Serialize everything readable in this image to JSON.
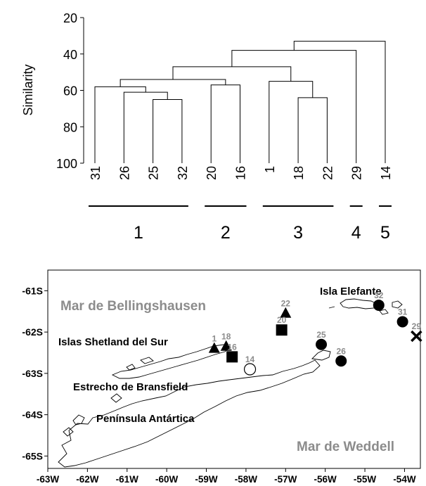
{
  "dendrogram": {
    "type": "dendrogram",
    "ylabel": "Similarity",
    "yticks": [
      20,
      40,
      60,
      80,
      100
    ],
    "ylim": [
      20,
      100
    ],
    "leaves": [
      "31",
      "26",
      "25",
      "32",
      "20",
      "16",
      "1",
      "18",
      "22",
      "29",
      "14"
    ],
    "merges": [
      {
        "a": "25",
        "b": "32",
        "similarity": 65
      },
      {
        "a": "26",
        "b": "25+32",
        "similarity": 61
      },
      {
        "a": "31",
        "b": "26+25+32",
        "similarity": 58
      },
      {
        "a": "20",
        "b": "16",
        "similarity": 57
      },
      {
        "a": "18",
        "b": "22",
        "similarity": 64
      },
      {
        "a": "1",
        "b": "18+22",
        "similarity": 55
      },
      {
        "a": "g1",
        "b": "g2",
        "similarity": 54
      },
      {
        "a": "g12",
        "b": "g3",
        "similarity": 47
      },
      {
        "a": "g123",
        "b": "29",
        "similarity": 38
      },
      {
        "a": "g1234",
        "b": "14",
        "similarity": 33
      }
    ],
    "groups": [
      {
        "label": "1",
        "leaves": [
          "31",
          "26",
          "25",
          "32"
        ]
      },
      {
        "label": "2",
        "leaves": [
          "20",
          "16"
        ]
      },
      {
        "label": "3",
        "leaves": [
          "1",
          "18",
          "22"
        ]
      },
      {
        "label": "4",
        "leaves": [
          "29"
        ]
      },
      {
        "label": "5",
        "leaves": [
          "14"
        ]
      }
    ]
  },
  "map": {
    "type": "scatter",
    "xticks": [
      "-63W",
      "-62W",
      "-61W",
      "-60W",
      "-59W",
      "-58W",
      "-57W",
      "-56W",
      "-55W",
      "-54W"
    ],
    "yticks": [
      "-61S",
      "-62S",
      "-63S",
      "-64S",
      "-65S"
    ],
    "xlim": [
      -63,
      -53.6
    ],
    "ylim": [
      -65.3,
      -60.5
    ],
    "region_labels": {
      "bellingshausen": "Mar de Bellingshausen",
      "weddell": "Mar de Weddell",
      "elefante": "Isla Elefante",
      "shetland": "Islas Shetland del Sur",
      "bransfield": "Estrecho de Bransfield",
      "peninsula": "Península Antártica"
    },
    "stations": [
      {
        "label": "22",
        "lon": -57.0,
        "lat": -61.55,
        "group": "3",
        "marker": "triangle"
      },
      {
        "label": "20",
        "lon": -57.1,
        "lat": -61.95,
        "group": "2",
        "marker": "square"
      },
      {
        "label": "1",
        "lon": -58.8,
        "lat": -62.4,
        "group": "3",
        "marker": "triangle"
      },
      {
        "label": "18",
        "lon": -58.5,
        "lat": -62.35,
        "group": "3",
        "marker": "triangle"
      },
      {
        "label": "16",
        "lon": -58.35,
        "lat": -62.6,
        "group": "2",
        "marker": "square"
      },
      {
        "label": "14",
        "lon": -57.9,
        "lat": -62.9,
        "group": "5",
        "marker": "open-circle"
      },
      {
        "label": "25",
        "lon": -56.1,
        "lat": -62.3,
        "group": "1",
        "marker": "circle"
      },
      {
        "label": "26",
        "lon": -55.6,
        "lat": -62.7,
        "group": "1",
        "marker": "circle"
      },
      {
        "label": "32",
        "lon": -54.65,
        "lat": -61.35,
        "group": "1",
        "marker": "circle"
      },
      {
        "label": "31",
        "lon": -54.05,
        "lat": -61.75,
        "group": "1",
        "marker": "circle"
      },
      {
        "label": "29",
        "lon": -53.7,
        "lat": -62.1,
        "group": "4",
        "marker": "cross"
      }
    ]
  }
}
